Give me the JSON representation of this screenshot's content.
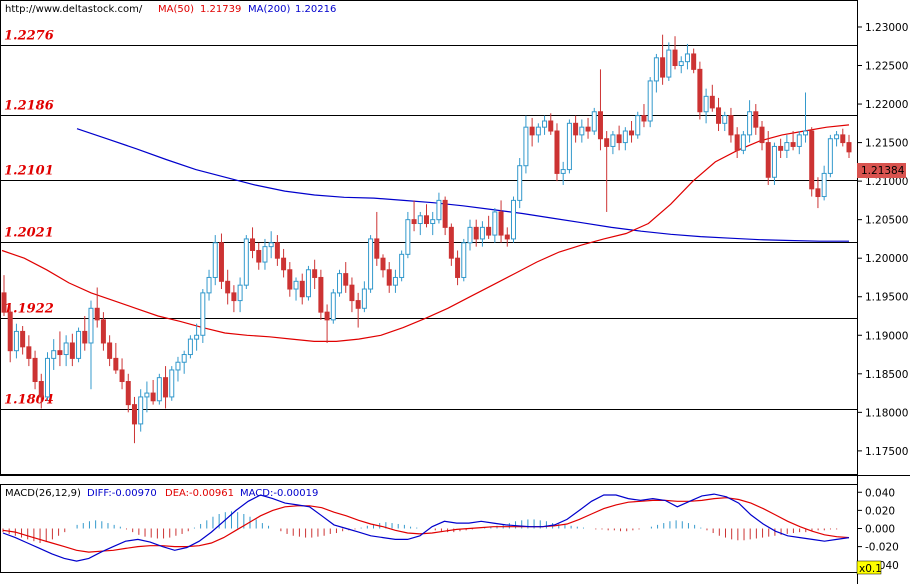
{
  "header": {
    "site": "http://www.deltastock.com/",
    "ma50_label": "MA(50)",
    "ma50_value": "1.21739",
    "ma200_label": "MA(200)",
    "ma200_value": "1.20216"
  },
  "macd_header": {
    "title": "MACD(26,12,9)",
    "diff": "DIFF:-0.00970",
    "dea": "DEA:-0.00961",
    "macd": "MACD:-0.00019"
  },
  "current_price": "1.21384",
  "scale_badge": "x0.1",
  "colors": {
    "bull": "#3399cc",
    "bear": "#cc3333",
    "ma50": "#e00000",
    "ma200": "#0000cc",
    "level_text": "#e00000",
    "price_box": "#d9534f"
  },
  "chart_data": {
    "type": "candlestick",
    "ylim": [
      1.172,
      1.2335
    ],
    "yticks": [
      "1.23000",
      "1.22500",
      "1.22000",
      "1.21500",
      "1.21000",
      "1.20500",
      "1.20000",
      "1.19500",
      "1.19000",
      "1.18500",
      "1.18000",
      "1.17500"
    ],
    "levels": [
      "1.2276",
      "1.2186",
      "1.2101",
      "1.2021",
      "1.1922",
      "1.1804"
    ],
    "candles": [
      [
        1.1955,
        1.1978,
        1.1925,
        1.193
      ],
      [
        1.193,
        1.194,
        1.1865,
        1.188
      ],
      [
        1.188,
        1.1915,
        1.187,
        1.1905
      ],
      [
        1.1905,
        1.1912,
        1.1875,
        1.1885
      ],
      [
        1.1885,
        1.19,
        1.186,
        1.187
      ],
      [
        1.187,
        1.188,
        1.183,
        1.184
      ],
      [
        1.184,
        1.185,
        1.1805,
        1.182
      ],
      [
        1.182,
        1.1878,
        1.1815,
        1.187
      ],
      [
        1.187,
        1.1895,
        1.1855,
        1.188
      ],
      [
        1.188,
        1.1905,
        1.186,
        1.1875
      ],
      [
        1.1875,
        1.19,
        1.186,
        1.189
      ],
      [
        1.189,
        1.1902,
        1.186,
        1.187
      ],
      [
        1.187,
        1.191,
        1.1865,
        1.1905
      ],
      [
        1.1905,
        1.1925,
        1.188,
        1.189
      ],
      [
        1.189,
        1.1945,
        1.183,
        1.1935
      ],
      [
        1.1935,
        1.1962,
        1.191,
        1.192
      ],
      [
        1.192,
        1.193,
        1.188,
        1.189
      ],
      [
        1.189,
        1.19,
        1.186,
        1.187
      ],
      [
        1.187,
        1.189,
        1.185,
        1.1855
      ],
      [
        1.1855,
        1.187,
        1.183,
        1.184
      ],
      [
        1.184,
        1.185,
        1.18,
        1.181
      ],
      [
        1.181,
        1.182,
        1.176,
        1.1785
      ],
      [
        1.1785,
        1.183,
        1.1775,
        1.182
      ],
      [
        1.182,
        1.184,
        1.18,
        1.1825
      ],
      [
        1.1825,
        1.1842,
        1.181,
        1.1815
      ],
      [
        1.1815,
        1.185,
        1.181,
        1.1845
      ],
      [
        1.1845,
        1.186,
        1.1805,
        1.182
      ],
      [
        1.182,
        1.186,
        1.1815,
        1.1855
      ],
      [
        1.1855,
        1.1872,
        1.184,
        1.1865
      ],
      [
        1.1865,
        1.188,
        1.185,
        1.1875
      ],
      [
        1.1875,
        1.19,
        1.187,
        1.1895
      ],
      [
        1.1895,
        1.1915,
        1.188,
        1.19
      ],
      [
        1.19,
        1.196,
        1.189,
        1.1955
      ],
      [
        1.1955,
        1.1985,
        1.1945,
        1.1975
      ],
      [
        1.1975,
        1.203,
        1.1965,
        1.202
      ],
      [
        1.202,
        1.2032,
        1.196,
        1.197
      ],
      [
        1.197,
        1.1985,
        1.194,
        1.1955
      ],
      [
        1.1955,
        1.1965,
        1.193,
        1.1945
      ],
      [
        1.1945,
        1.1975,
        1.193,
        1.1965
      ],
      [
        1.1965,
        1.203,
        1.196,
        1.2025
      ],
      [
        1.2025,
        1.204,
        1.2,
        1.201
      ],
      [
        1.201,
        1.202,
        1.1985,
        1.1995
      ],
      [
        1.1995,
        1.2025,
        1.1985,
        1.2015
      ],
      [
        1.2015,
        1.2035,
        1.2,
        1.202
      ],
      [
        1.202,
        1.203,
        1.199,
        1.2
      ],
      [
        1.2,
        1.2012,
        1.1975,
        1.1985
      ],
      [
        1.1985,
        1.1995,
        1.195,
        1.196
      ],
      [
        1.196,
        1.1975,
        1.1945,
        1.197
      ],
      [
        1.197,
        1.198,
        1.194,
        1.195
      ],
      [
        1.195,
        1.199,
        1.1945,
        1.1985
      ],
      [
        1.1985,
        1.1998,
        1.196,
        1.1975
      ],
      [
        1.1975,
        1.1985,
        1.192,
        1.193
      ],
      [
        1.193,
        1.194,
        1.189,
        1.192
      ],
      [
        1.192,
        1.196,
        1.1915,
        1.1955
      ],
      [
        1.1955,
        1.1985,
        1.195,
        1.198
      ],
      [
        1.198,
        1.1995,
        1.1955,
        1.1965
      ],
      [
        1.1965,
        1.1975,
        1.193,
        1.1945
      ],
      [
        1.1945,
        1.1955,
        1.191,
        1.1935
      ],
      [
        1.1935,
        1.197,
        1.193,
        1.196
      ],
      [
        1.196,
        1.203,
        1.1955,
        1.2025
      ],
      [
        1.2025,
        1.206,
        1.199,
        1.2
      ],
      [
        1.2,
        1.2005,
        1.1975,
        1.1985
      ],
      [
        1.1985,
        1.1995,
        1.1955,
        1.1965
      ],
      [
        1.1965,
        1.1985,
        1.1955,
        1.1975
      ],
      [
        1.1975,
        1.201,
        1.197,
        1.2005
      ],
      [
        1.2005,
        1.206,
        1.2,
        1.205
      ],
      [
        1.205,
        1.2075,
        1.2035,
        1.2045
      ],
      [
        1.2045,
        1.206,
        1.203,
        1.2055
      ],
      [
        1.2055,
        1.207,
        1.204,
        1.2045
      ],
      [
        1.2045,
        1.206,
        1.203,
        1.205
      ],
      [
        1.205,
        1.2085,
        1.2045,
        1.2075
      ],
      [
        1.2075,
        1.208,
        1.203,
        1.204
      ],
      [
        1.204,
        1.2045,
        1.199,
        1.2
      ],
      [
        1.2,
        1.201,
        1.1965,
        1.1975
      ],
      [
        1.1975,
        1.2025,
        1.197,
        1.202
      ],
      [
        1.202,
        1.205,
        1.201,
        1.204
      ],
      [
        1.204,
        1.205,
        1.2015,
        1.2025
      ],
      [
        1.2025,
        1.2048,
        1.2015,
        1.204
      ],
      [
        1.204,
        1.2055,
        1.2025,
        1.203
      ],
      [
        1.203,
        1.2065,
        1.202,
        1.206
      ],
      [
        1.206,
        1.2075,
        1.202,
        1.203
      ],
      [
        1.203,
        1.204,
        1.2015,
        1.2025
      ],
      [
        1.2025,
        1.208,
        1.202,
        1.2075
      ],
      [
        1.2075,
        1.213,
        1.2065,
        1.212
      ],
      [
        1.212,
        1.2185,
        1.211,
        1.217
      ],
      [
        1.217,
        1.2182,
        1.2145,
        1.216
      ],
      [
        1.216,
        1.2175,
        1.215,
        1.217
      ],
      [
        1.217,
        1.2185,
        1.216,
        1.2178
      ],
      [
        1.2178,
        1.2188,
        1.216,
        1.2165
      ],
      [
        1.2165,
        1.2175,
        1.21,
        1.211
      ],
      [
        1.211,
        1.2125,
        1.2095,
        1.2115
      ],
      [
        1.2115,
        1.218,
        1.211,
        1.2175
      ],
      [
        1.2175,
        1.2185,
        1.215,
        1.216
      ],
      [
        1.216,
        1.218,
        1.215,
        1.217
      ],
      [
        1.217,
        1.2182,
        1.2155,
        1.2165
      ],
      [
        1.2165,
        1.2195,
        1.216,
        1.219
      ],
      [
        1.219,
        1.2245,
        1.214,
        1.2155
      ],
      [
        1.2155,
        1.2165,
        1.206,
        1.2145
      ],
      [
        1.2145,
        1.2165,
        1.2135,
        1.216
      ],
      [
        1.216,
        1.2172,
        1.214,
        1.215
      ],
      [
        1.215,
        1.217,
        1.214,
        1.2165
      ],
      [
        1.2165,
        1.2178,
        1.215,
        1.216
      ],
      [
        1.216,
        1.219,
        1.2155,
        1.2185
      ],
      [
        1.2185,
        1.22,
        1.217,
        1.2178
      ],
      [
        1.2178,
        1.2235,
        1.217,
        1.223
      ],
      [
        1.223,
        1.2265,
        1.2215,
        1.226
      ],
      [
        1.226,
        1.229,
        1.2225,
        1.2235
      ],
      [
        1.2235,
        1.228,
        1.223,
        1.227
      ],
      [
        1.227,
        1.2288,
        1.2245,
        1.225
      ],
      [
        1.225,
        1.2262,
        1.224,
        1.2255
      ],
      [
        1.2255,
        1.2278,
        1.2245,
        1.2265
      ],
      [
        1.2265,
        1.2272,
        1.224,
        1.2245
      ],
      [
        1.2245,
        1.2255,
        1.218,
        1.219
      ],
      [
        1.219,
        1.222,
        1.2175,
        1.221
      ],
      [
        1.221,
        1.2225,
        1.219,
        1.2195
      ],
      [
        1.2195,
        1.2208,
        1.2165,
        1.2175
      ],
      [
        1.2175,
        1.219,
        1.2165,
        1.2185
      ],
      [
        1.2185,
        1.2195,
        1.215,
        1.216
      ],
      [
        1.216,
        1.217,
        1.213,
        1.214
      ],
      [
        1.214,
        1.2165,
        1.2135,
        1.216
      ],
      [
        1.216,
        1.2205,
        1.215,
        1.219
      ],
      [
        1.219,
        1.22,
        1.216,
        1.217
      ],
      [
        1.217,
        1.2178,
        1.214,
        1.215
      ],
      [
        1.215,
        1.2165,
        1.2095,
        1.2105
      ],
      [
        1.2105,
        1.215,
        1.2095,
        1.2145
      ],
      [
        1.2145,
        1.2155,
        1.213,
        1.214
      ],
      [
        1.214,
        1.216,
        1.213,
        1.215
      ],
      [
        1.215,
        1.2165,
        1.214,
        1.2145
      ],
      [
        1.2145,
        1.2165,
        1.2135,
        1.216
      ],
      [
        1.216,
        1.2215,
        1.215,
        1.2165
      ],
      [
        1.2165,
        1.217,
        1.208,
        1.209
      ],
      [
        1.209,
        1.2105,
        1.2065,
        1.208
      ],
      [
        1.208,
        1.212,
        1.2075,
        1.211
      ],
      [
        1.211,
        1.216,
        1.2105,
        1.2155
      ],
      [
        1.2155,
        1.2165,
        1.2145,
        1.216
      ],
      [
        1.216,
        1.2168,
        1.2145,
        1.215
      ],
      [
        1.215,
        1.216,
        1.213,
        1.2138
      ]
    ],
    "ma50": [
      1.201,
      1.2,
      1.1985,
      1.1968,
      1.1955,
      1.1945,
      1.1935,
      1.1925,
      1.1918,
      1.191,
      1.1903,
      1.19,
      1.1898,
      1.1895,
      1.1892,
      1.1892,
      1.1895,
      1.19,
      1.191,
      1.1922,
      1.1935,
      1.195,
      1.1965,
      1.198,
      1.1995,
      1.2008,
      1.2017,
      1.2025,
      1.2032,
      1.2045,
      1.207,
      1.21,
      1.2125,
      1.214,
      1.2152,
      1.216,
      1.2165,
      1.217,
      1.2173
    ],
    "ma200": [
      1.2168,
      1.2155,
      1.2142,
      1.2128,
      1.2115,
      1.2105,
      1.2095,
      1.2087,
      1.2082,
      1.2079,
      1.2078,
      1.2075,
      1.2072,
      1.2068,
      1.2063,
      1.2058,
      1.2052,
      1.2046,
      1.204,
      1.2035,
      1.2031,
      1.2028,
      1.2026,
      1.2024,
      1.2023,
      1.2022,
      1.2022
    ],
    "macd_yticks": [
      "0.040",
      "0.020",
      "0.000",
      "-0.020",
      "-0.040"
    ],
    "macd_ylim": [
      -0.048,
      0.048
    ],
    "macd_hist": [
      -0.004,
      -0.006,
      -0.008,
      -0.01,
      -0.012,
      -0.014,
      -0.016,
      -0.015,
      -0.012,
      -0.008,
      -0.004,
      0.0,
      0.004,
      0.006,
      0.008,
      0.009,
      0.008,
      0.006,
      0.004,
      0.002,
      -0.001,
      -0.004,
      -0.007,
      -0.009,
      -0.01,
      -0.011,
      -0.011,
      -0.01,
      -0.008,
      -0.006,
      -0.003,
      0.001,
      0.005,
      0.009,
      0.013,
      0.016,
      0.018,
      0.019,
      0.018,
      0.016,
      0.013,
      0.01,
      0.006,
      0.003,
      0.0,
      -0.003,
      -0.006,
      -0.008,
      -0.009,
      -0.01,
      -0.01,
      -0.009,
      -0.008,
      -0.006,
      -0.005,
      -0.003,
      -0.002,
      -0.001,
      0.001,
      0.003,
      0.005,
      0.006,
      0.007,
      0.006,
      0.005,
      0.004,
      0.002,
      0.001,
      0.0,
      -0.001,
      -0.002,
      -0.003,
      -0.004,
      -0.004,
      -0.003,
      -0.002,
      -0.001,
      0.0,
      0.001,
      0.002,
      0.003,
      0.004,
      0.006,
      0.008,
      0.009,
      0.01,
      0.01,
      0.009,
      0.008,
      0.006,
      0.005,
      0.004,
      0.003,
      0.002,
      0.001,
      0.0,
      -0.001,
      -0.001,
      -0.002,
      -0.002,
      -0.003,
      -0.003,
      -0.002,
      -0.001,
      0.0,
      0.002,
      0.004,
      0.006,
      0.008,
      0.009,
      0.008,
      0.006,
      0.004,
      0.001,
      -0.002,
      -0.005,
      -0.008,
      -0.01,
      -0.012,
      -0.013,
      -0.013,
      -0.012,
      -0.011,
      -0.01,
      -0.009,
      -0.008,
      -0.007,
      -0.006,
      -0.005,
      -0.004,
      -0.004,
      -0.003,
      -0.002,
      -0.002,
      -0.001,
      -0.001,
      0.0,
      0.0
    ],
    "macd_diff": [
      -0.005,
      -0.01,
      -0.016,
      -0.022,
      -0.028,
      -0.033,
      -0.036,
      -0.033,
      -0.026,
      -0.02,
      -0.014,
      -0.012,
      -0.015,
      -0.02,
      -0.024,
      -0.021,
      -0.014,
      -0.004,
      0.008,
      0.02,
      0.03,
      0.037,
      0.033,
      0.028,
      0.026,
      0.024,
      0.014,
      0.004,
      0.0,
      -0.004,
      -0.008,
      -0.01,
      -0.012,
      -0.012,
      -0.008,
      0.002,
      0.008,
      0.006,
      0.006,
      0.008,
      0.006,
      0.004,
      0.003,
      0.002,
      0.002,
      0.004,
      0.01,
      0.02,
      0.03,
      0.037,
      0.037,
      0.033,
      0.031,
      0.033,
      0.031,
      0.024,
      0.03,
      0.036,
      0.038,
      0.035,
      0.028,
      0.015,
      0.005,
      -0.003,
      -0.008,
      -0.01,
      -0.012,
      -0.014,
      -0.012,
      -0.01
    ],
    "macd_dea": [
      -0.002,
      -0.004,
      -0.008,
      -0.012,
      -0.016,
      -0.02,
      -0.024,
      -0.026,
      -0.025,
      -0.024,
      -0.022,
      -0.02,
      -0.019,
      -0.019,
      -0.02,
      -0.02,
      -0.019,
      -0.016,
      -0.01,
      -0.002,
      0.006,
      0.014,
      0.02,
      0.024,
      0.025,
      0.025,
      0.023,
      0.018,
      0.014,
      0.009,
      0.005,
      0.002,
      -0.002,
      -0.005,
      -0.006,
      -0.005,
      -0.003,
      -0.001,
      0.0,
      0.001,
      0.002,
      0.002,
      0.002,
      0.002,
      0.002,
      0.003,
      0.005,
      0.01,
      0.016,
      0.022,
      0.026,
      0.029,
      0.03,
      0.031,
      0.031,
      0.03,
      0.03,
      0.031,
      0.033,
      0.034,
      0.032,
      0.028,
      0.022,
      0.015,
      0.008,
      0.002,
      -0.003,
      -0.007,
      -0.009,
      -0.01
    ]
  }
}
